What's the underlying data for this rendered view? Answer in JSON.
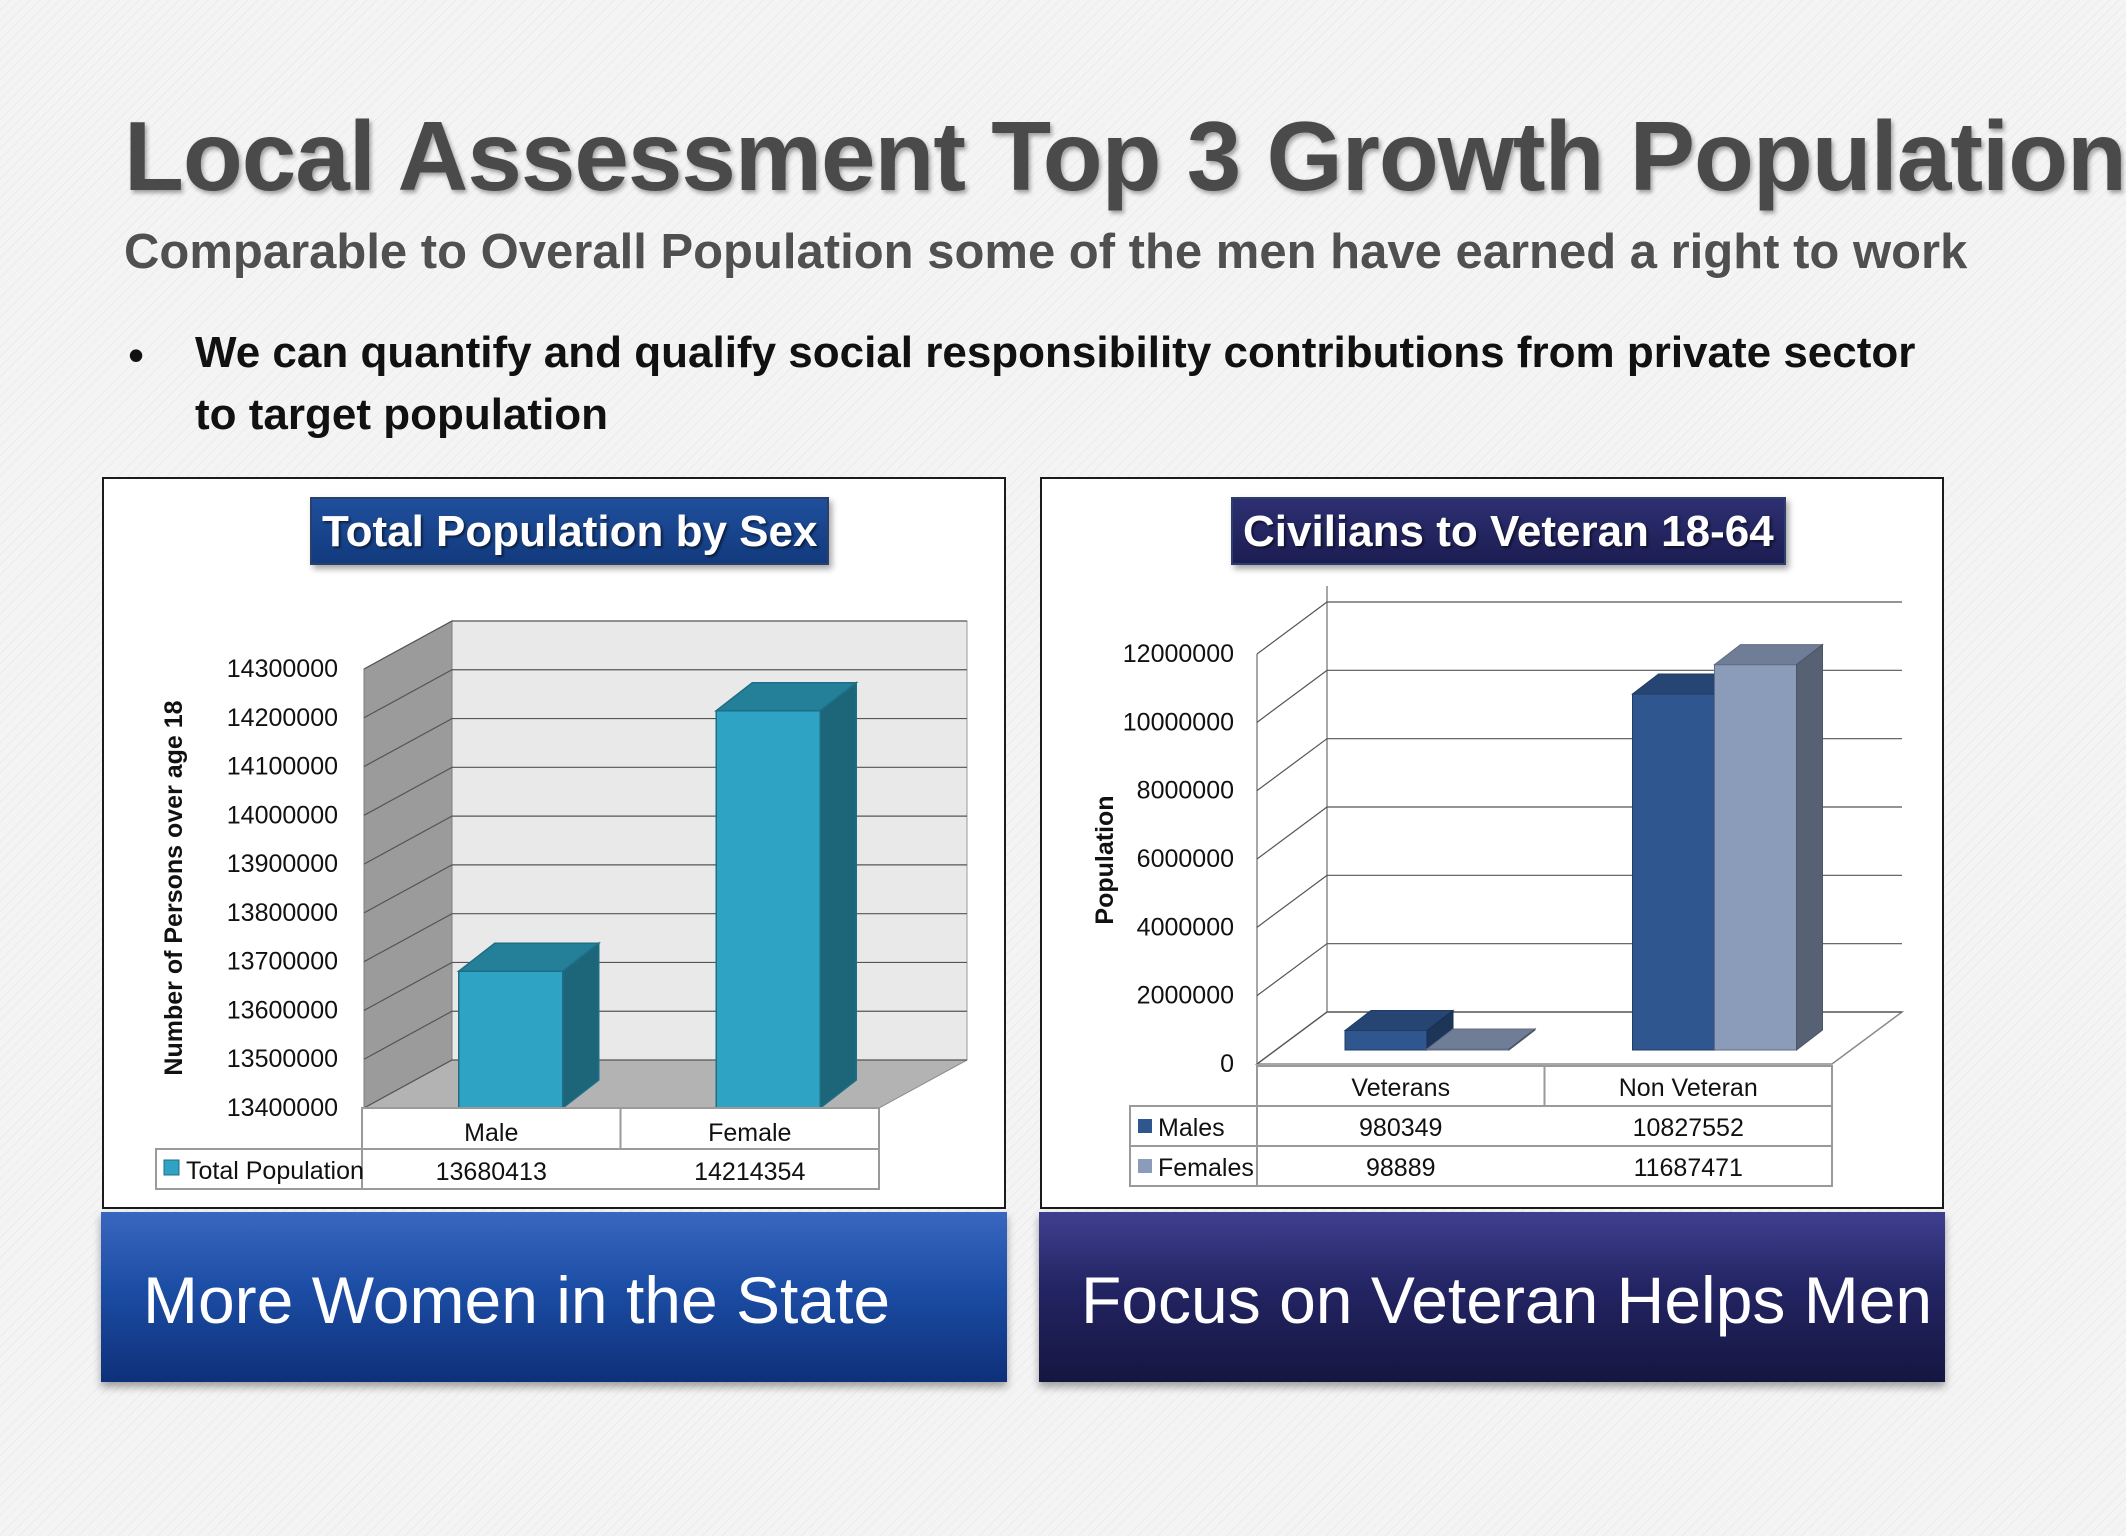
{
  "slide": {
    "title": "Local Assessment Top 3 Growth Population",
    "subtitle": "Comparable to Overall Population some of the men have earned a right to work",
    "bullet": "We can quantify and qualify social responsibility contributions from private sector to target population",
    "banner_left": "More Women in the State",
    "banner_right": "Focus on Veteran Helps Men"
  },
  "chart_data": [
    {
      "type": "bar",
      "title": "Total Population by Sex",
      "ylabel": "Number of Persons over age 18",
      "xlabel": "",
      "categories": [
        "Male",
        "Female"
      ],
      "ylim": [
        13400000,
        14300000
      ],
      "yticks": [
        13400000,
        13500000,
        13600000,
        13700000,
        13800000,
        13900000,
        14000000,
        14100000,
        14200000,
        14300000
      ],
      "series": [
        {
          "name": "Total Population",
          "values": [
            13680413,
            14214354
          ],
          "color": "#2ea3c3"
        }
      ],
      "data_table": true,
      "grid": true,
      "style": "3d"
    },
    {
      "type": "bar",
      "title": "Civilians to Veteran 18-64",
      "ylabel": "Population",
      "xlabel": "",
      "categories": [
        "Veterans",
        "Non Veteran"
      ],
      "ylim": [
        0,
        12000000
      ],
      "yticks": [
        0,
        2000000,
        4000000,
        6000000,
        8000000,
        10000000,
        12000000
      ],
      "series": [
        {
          "name": "Males",
          "values": [
            980349,
            10827552
          ],
          "color": "#2f568f"
        },
        {
          "name": "Females",
          "values": [
            98889,
            11687471
          ],
          "color": "#8b9cbb"
        }
      ],
      "data_table": true,
      "grid": true,
      "style": "3d"
    }
  ]
}
